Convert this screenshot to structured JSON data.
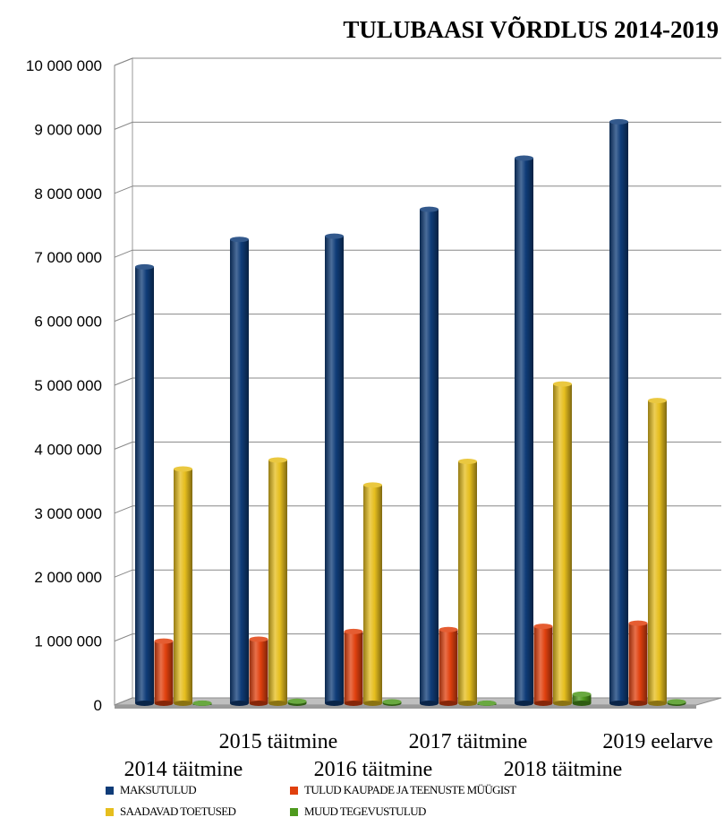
{
  "chart_data": {
    "type": "bar",
    "title": "TULUBAASI VÕRDLUS 2014-2019",
    "xlabel": "",
    "ylabel": "",
    "ylim": [
      0,
      10000000
    ],
    "yticks": [
      0,
      1000000,
      2000000,
      3000000,
      4000000,
      5000000,
      6000000,
      7000000,
      8000000,
      9000000,
      10000000
    ],
    "ytick_labels": [
      "0",
      "1 000 000",
      "2 000 000",
      "3 000 000",
      "4 000 000",
      "5 000 000",
      "6 000 000",
      "7 000 000",
      "8 000 000",
      "9 000 000",
      "10 000 000"
    ],
    "categories": [
      "2014 täitmine",
      "2015 täitmine",
      "2016 täitmine",
      "2017 täitmine",
      "2018 täitmine",
      "2019 eelarve"
    ],
    "grid": true,
    "legend_position": "bottom",
    "series": [
      {
        "name": "MAKSUTULUD",
        "color": "#0F3C78",
        "values": [
          6850000,
          7280000,
          7330000,
          7750000,
          8550000,
          9120000
        ]
      },
      {
        "name": "TULUD KAUPADE JA TEENUSTE MÜÜGIST",
        "color": "#E0400E",
        "values": [
          1000000,
          1030000,
          1150000,
          1180000,
          1230000,
          1280000
        ]
      },
      {
        "name": "SAADAVAD TOETUSED",
        "color": "#E6BE1E",
        "values": [
          3690000,
          3830000,
          3440000,
          3810000,
          5020000,
          4760000
        ]
      },
      {
        "name": "MUUD TEGEVUSTULUD",
        "color": "#4E9A1E",
        "values": [
          30000,
          60000,
          50000,
          30000,
          170000,
          50000
        ]
      }
    ]
  }
}
